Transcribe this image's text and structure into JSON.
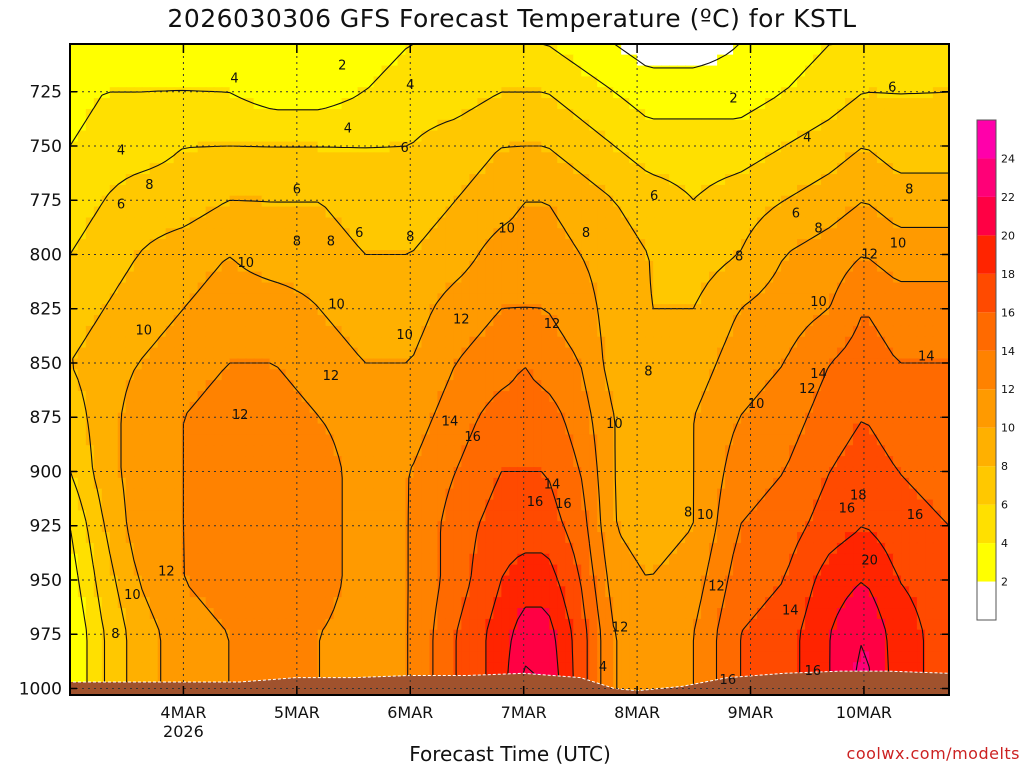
{
  "chart_data": {
    "type": "heatmap",
    "title": "2026030306 GFS Forecast Temperature (ºC) for KSTL",
    "xlabel": "Forecast Time (UTC)",
    "ylabel": "",
    "credit": "coolwx.com/modelts",
    "x_ticks": [
      {
        "label": "4MAR",
        "sub": "2026",
        "day": 1
      },
      {
        "label": "5MAR",
        "sub": "",
        "day": 2
      },
      {
        "label": "6MAR",
        "sub": "",
        "day": 3
      },
      {
        "label": "7MAR",
        "sub": "",
        "day": 4
      },
      {
        "label": "8MAR",
        "sub": "",
        "day": 5
      },
      {
        "label": "9MAR",
        "sub": "",
        "day": 6
      },
      {
        "label": "10MAR",
        "sub": "",
        "day": 7
      }
    ],
    "xlim": [
      0.0,
      7.75
    ],
    "y_ticks": [
      725,
      750,
      775,
      800,
      825,
      850,
      875,
      900,
      925,
      950,
      975,
      1000
    ],
    "ylim": [
      1003,
      703
    ],
    "colorbar": {
      "ticks": [
        2,
        4,
        6,
        8,
        10,
        12,
        14,
        16,
        18,
        20,
        22,
        24
      ],
      "levels": [
        {
          "min": 0,
          "max": 2,
          "color": "#ffffff"
        },
        {
          "min": 2,
          "max": 4,
          "color": "#ffff00"
        },
        {
          "min": 4,
          "max": 6,
          "color": "#ffe000"
        },
        {
          "min": 6,
          "max": 8,
          "color": "#ffc800"
        },
        {
          "min": 8,
          "max": 10,
          "color": "#ffb000"
        },
        {
          "min": 10,
          "max": 12,
          "color": "#ff9a00"
        },
        {
          "min": 12,
          "max": 14,
          "color": "#ff8200"
        },
        {
          "min": 14,
          "max": 16,
          "color": "#ff6a00"
        },
        {
          "min": 16,
          "max": 18,
          "color": "#ff4a00"
        },
        {
          "min": 18,
          "max": 20,
          "color": "#ff2400"
        },
        {
          "min": 20,
          "max": 22,
          "color": "#ff0044"
        },
        {
          "min": 22,
          "max": 24,
          "color": "#ff0077"
        },
        {
          "min": 24,
          "max": 26,
          "color": "#ff00aa"
        }
      ]
    },
    "terrain_color": "#a0522d",
    "surface_pressure": [
      {
        "day": 0.0,
        "p": 997
      },
      {
        "day": 0.75,
        "p": 997
      },
      {
        "day": 1.5,
        "p": 997
      },
      {
        "day": 2.0,
        "p": 995
      },
      {
        "day": 2.5,
        "p": 995
      },
      {
        "day": 3.0,
        "p": 994
      },
      {
        "day": 3.5,
        "p": 994
      },
      {
        "day": 4.0,
        "p": 993
      },
      {
        "day": 4.5,
        "p": 995
      },
      {
        "day": 4.8,
        "p": 1000
      },
      {
        "day": 5.0,
        "p": 1001
      },
      {
        "day": 5.4,
        "p": 999
      },
      {
        "day": 5.8,
        "p": 995
      },
      {
        "day": 6.3,
        "p": 993
      },
      {
        "day": 6.8,
        "p": 992
      },
      {
        "day": 7.2,
        "p": 992
      },
      {
        "day": 7.75,
        "p": 993
      }
    ],
    "temperature_profiles": {
      "levels": [
        703,
        725,
        750,
        775,
        800,
        825,
        850,
        875,
        900,
        925,
        950,
        975,
        1003
      ],
      "columns": [
        {
          "day": 0.0,
          "t": [
            3,
            3,
            4,
            5,
            6,
            7,
            8,
            7,
            6,
            4,
            3,
            2,
            2
          ]
        },
        {
          "day": 0.3,
          "t": [
            3,
            4,
            5,
            6,
            7,
            8,
            9,
            9,
            9,
            8,
            7,
            6,
            6
          ]
        },
        {
          "day": 0.6,
          "t": [
            3,
            4,
            5,
            7,
            8,
            9,
            10,
            11,
            11,
            11,
            10,
            9,
            9
          ]
        },
        {
          "day": 1.0,
          "t": [
            3,
            4,
            6,
            7,
            9,
            10,
            11,
            12,
            12,
            12,
            12,
            11,
            11
          ]
        },
        {
          "day": 1.4,
          "t": [
            2,
            4,
            6,
            8,
            10,
            11,
            12,
            13,
            13,
            13,
            13,
            12,
            12
          ]
        },
        {
          "day": 1.8,
          "t": [
            2,
            3,
            6,
            8,
            9,
            11,
            12,
            13,
            14,
            14,
            14,
            13,
            13
          ]
        },
        {
          "day": 2.2,
          "t": [
            2,
            3,
            6,
            8,
            9,
            10,
            11,
            12,
            13,
            13,
            13,
            12,
            12
          ]
        },
        {
          "day": 2.6,
          "t": [
            3,
            4,
            6,
            7,
            8,
            9,
            10,
            11,
            11,
            11,
            11,
            11,
            11
          ]
        },
        {
          "day": 3.0,
          "t": [
            4,
            5,
            6,
            7,
            8,
            9,
            10,
            11,
            12,
            12,
            12,
            12,
            12
          ]
        },
        {
          "day": 3.4,
          "t": [
            4,
            5,
            7,
            8,
            9,
            11,
            12,
            13,
            14,
            15,
            15,
            16,
            16
          ]
        },
        {
          "day": 3.8,
          "t": [
            4,
            6,
            8,
            9,
            11,
            12,
            13,
            15,
            16,
            17,
            18,
            19,
            19
          ]
        },
        {
          "day": 4.0,
          "t": [
            4,
            6,
            8,
            10,
            11,
            12,
            14,
            15,
            16,
            17,
            19,
            21,
            23
          ]
        },
        {
          "day": 4.2,
          "t": [
            4,
            6,
            8,
            10,
            11,
            12,
            13,
            15,
            16,
            17,
            19,
            21,
            22
          ]
        },
        {
          "day": 4.5,
          "t": [
            3,
            5,
            7,
            9,
            10,
            11,
            12,
            13,
            14,
            15,
            16,
            17,
            17
          ]
        },
        {
          "day": 4.8,
          "t": [
            2,
            4,
            6,
            8,
            9,
            9,
            9,
            10,
            10,
            10,
            11,
            12,
            12
          ]
        },
        {
          "day": 5.1,
          "t": [
            1,
            3,
            5,
            7,
            8,
            8,
            8,
            8,
            8,
            9,
            10,
            11,
            11
          ]
        },
        {
          "day": 5.5,
          "t": [
            1,
            3,
            5,
            6,
            7,
            8,
            9,
            10,
            10,
            10,
            11,
            12,
            12
          ]
        },
        {
          "day": 5.9,
          "t": [
            2,
            3,
            5,
            7,
            8,
            10,
            11,
            12,
            13,
            14,
            15,
            16,
            16
          ]
        },
        {
          "day": 6.3,
          "t": [
            3,
            4,
            6,
            8,
            10,
            11,
            12,
            13,
            14,
            15,
            16,
            17,
            17
          ]
        },
        {
          "day": 6.7,
          "t": [
            4,
            5,
            7,
            9,
            11,
            12,
            14,
            15,
            16,
            17,
            19,
            20,
            20
          ]
        },
        {
          "day": 7.0,
          "t": [
            4,
            6,
            8,
            10,
            12,
            14,
            15,
            16,
            17,
            18,
            20,
            22,
            23
          ]
        },
        {
          "day": 7.3,
          "t": [
            4,
            6,
            7,
            9,
            11,
            13,
            14,
            15,
            16,
            17,
            18,
            19,
            19
          ]
        },
        {
          "day": 7.75,
          "t": [
            5,
            6,
            7,
            9,
            11,
            13,
            14,
            15,
            15,
            16,
            17,
            17,
            17
          ]
        }
      ]
    },
    "contour_labels": [
      {
        "text": "4",
        "day": 0.45,
        "p": 752
      },
      {
        "text": "6",
        "day": 0.45,
        "p": 777
      },
      {
        "text": "8",
        "day": 0.4,
        "p": 975
      },
      {
        "text": "10",
        "day": 0.55,
        "p": 957
      },
      {
        "text": "10",
        "day": 0.65,
        "p": 835
      },
      {
        "text": "8",
        "day": 0.7,
        "p": 768
      },
      {
        "text": "12",
        "day": 0.85,
        "p": 946
      },
      {
        "text": "4",
        "day": 1.45,
        "p": 719
      },
      {
        "text": "10",
        "day": 1.55,
        "p": 804
      },
      {
        "text": "12",
        "day": 1.5,
        "p": 874
      },
      {
        "text": "6",
        "day": 2.0,
        "p": 770
      },
      {
        "text": "8",
        "day": 2.0,
        "p": 794
      },
      {
        "text": "2",
        "day": 2.4,
        "p": 713
      },
      {
        "text": "4",
        "day": 2.45,
        "p": 742
      },
      {
        "text": "8",
        "day": 2.3,
        "p": 794
      },
      {
        "text": "6",
        "day": 2.55,
        "p": 790
      },
      {
        "text": "10",
        "day": 2.35,
        "p": 823
      },
      {
        "text": "12",
        "day": 2.3,
        "p": 856
      },
      {
        "text": "4",
        "day": 3.0,
        "p": 722
      },
      {
        "text": "6",
        "day": 2.95,
        "p": 751
      },
      {
        "text": "8",
        "day": 3.0,
        "p": 792
      },
      {
        "text": "10",
        "day": 2.95,
        "p": 837
      },
      {
        "text": "12",
        "day": 3.45,
        "p": 830
      },
      {
        "text": "14",
        "day": 3.35,
        "p": 877
      },
      {
        "text": "16",
        "day": 3.55,
        "p": 884
      },
      {
        "text": "10",
        "day": 3.85,
        "p": 788
      },
      {
        "text": "12",
        "day": 4.25,
        "p": 832
      },
      {
        "text": "16",
        "day": 4.1,
        "p": 914
      },
      {
        "text": "14",
        "day": 4.25,
        "p": 906
      },
      {
        "text": "16",
        "day": 4.35,
        "p": 915
      },
      {
        "text": "8",
        "day": 4.55,
        "p": 790
      },
      {
        "text": "6",
        "day": 5.15,
        "p": 773
      },
      {
        "text": "12",
        "day": 4.85,
        "p": 972
      },
      {
        "text": "4",
        "day": 4.7,
        "p": 990
      },
      {
        "text": "8",
        "day": 5.1,
        "p": 854
      },
      {
        "text": "10",
        "day": 4.8,
        "p": 878
      },
      {
        "text": "8",
        "day": 5.45,
        "p": 919
      },
      {
        "text": "10",
        "day": 5.6,
        "p": 920
      },
      {
        "text": "2",
        "day": 5.85,
        "p": 728
      },
      {
        "text": "8",
        "day": 5.9,
        "p": 801
      },
      {
        "text": "10",
        "day": 6.05,
        "p": 869
      },
      {
        "text": "12",
        "day": 5.7,
        "p": 953
      },
      {
        "text": "16",
        "day": 5.8,
        "p": 996
      },
      {
        "text": "4",
        "day": 6.5,
        "p": 746
      },
      {
        "text": "6",
        "day": 6.4,
        "p": 781
      },
      {
        "text": "8",
        "day": 6.6,
        "p": 788
      },
      {
        "text": "10",
        "day": 6.6,
        "p": 822
      },
      {
        "text": "14",
        "day": 6.6,
        "p": 855
      },
      {
        "text": "12",
        "day": 6.5,
        "p": 862
      },
      {
        "text": "14",
        "day": 6.35,
        "p": 964
      },
      {
        "text": "16",
        "day": 6.55,
        "p": 992
      },
      {
        "text": "16",
        "day": 6.85,
        "p": 917
      },
      {
        "text": "18",
        "day": 6.95,
        "p": 911
      },
      {
        "text": "20",
        "day": 7.05,
        "p": 941
      },
      {
        "text": "12",
        "day": 7.05,
        "p": 800
      },
      {
        "text": "10",
        "day": 7.3,
        "p": 795
      },
      {
        "text": "8",
        "day": 7.4,
        "p": 770
      },
      {
        "text": "6",
        "day": 7.25,
        "p": 723
      },
      {
        "text": "14",
        "day": 7.55,
        "p": 847
      },
      {
        "text": "16",
        "day": 7.45,
        "p": 920
      }
    ]
  }
}
